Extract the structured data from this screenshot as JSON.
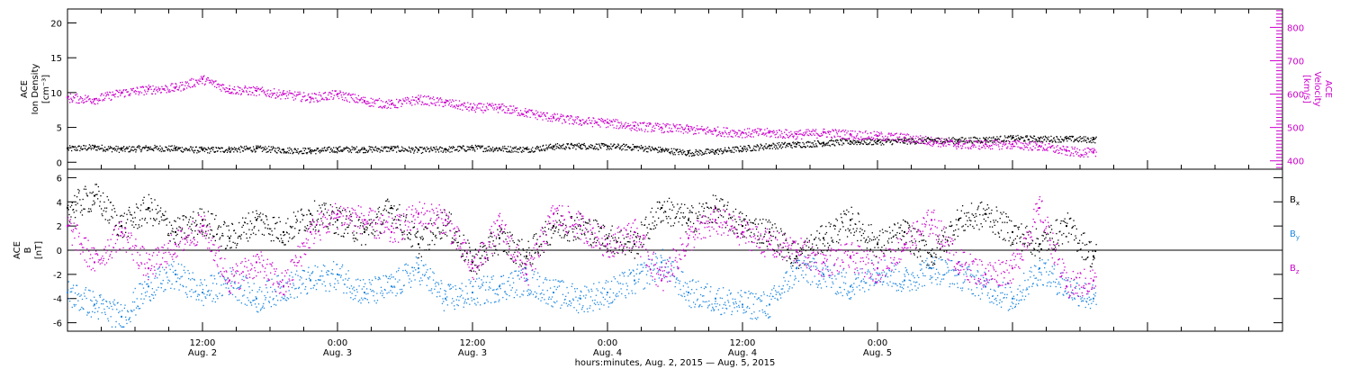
{
  "chart_data": [
    {
      "type": "scatter",
      "panel": "top",
      "left_axis": {
        "label_lines": [
          "ACE",
          "Ion Density",
          "[cm⁻³]"
        ],
        "range": [
          -1,
          22
        ],
        "ticks": [
          0,
          5,
          10,
          15,
          20
        ],
        "tick_labels": [
          "0",
          "5",
          "10",
          "15",
          "20"
        ],
        "color": "#000000"
      },
      "right_axis": {
        "label_lines": [
          "ACE",
          "Velocity",
          "[km/s]"
        ],
        "range": [
          375,
          855
        ],
        "ticks": [
          400,
          500,
          600,
          700,
          800
        ],
        "tick_labels": [
          "400",
          "500",
          "600",
          "700",
          "800"
        ],
        "color": "#cc00cc"
      },
      "series": [
        {
          "axis": "left",
          "color": "#000000",
          "points": [
            [
              0,
              2.0
            ],
            [
              0.1,
              2.2
            ],
            [
              0.2,
              1.9
            ],
            [
              0.3,
              2.1
            ],
            [
              0.4,
              2.0
            ],
            [
              0.5,
              1.8
            ],
            [
              0.6,
              1.9
            ],
            [
              0.7,
              2.0
            ],
            [
              0.8,
              1.8
            ],
            [
              0.9,
              1.7
            ],
            [
              1.0,
              1.9
            ],
            [
              1.1,
              1.9
            ],
            [
              1.2,
              2.0
            ],
            [
              1.3,
              1.8
            ],
            [
              1.4,
              1.9
            ],
            [
              1.5,
              2.1
            ],
            [
              1.6,
              2.0
            ],
            [
              1.7,
              1.9
            ],
            [
              1.8,
              2.3
            ],
            [
              1.9,
              2.4
            ],
            [
              2.0,
              2.3
            ],
            [
              2.1,
              2.2
            ],
            [
              2.2,
              1.8
            ],
            [
              2.3,
              1.4
            ],
            [
              2.4,
              1.6
            ],
            [
              2.5,
              2.0
            ],
            [
              2.6,
              2.4
            ],
            [
              2.7,
              2.6
            ],
            [
              2.8,
              2.8
            ],
            [
              2.9,
              3.0
            ],
            [
              3.0,
              3.0
            ],
            [
              3.1,
              3.1
            ],
            [
              3.2,
              3.2
            ],
            [
              3.3,
              3.2
            ],
            [
              3.4,
              3.3
            ],
            [
              3.5,
              3.5
            ],
            [
              3.6,
              3.4
            ],
            [
              3.7,
              3.4
            ],
            [
              3.8,
              3.3
            ]
          ]
        },
        {
          "axis": "right",
          "color": "#cc00cc",
          "points": [
            [
              0,
              590
            ],
            [
              0.1,
              585
            ],
            [
              0.2,
              605
            ],
            [
              0.3,
              615
            ],
            [
              0.4,
              620
            ],
            [
              0.5,
              645
            ],
            [
              0.6,
              615
            ],
            [
              0.7,
              610
            ],
            [
              0.8,
              600
            ],
            [
              0.9,
              590
            ],
            [
              1.0,
              600
            ],
            [
              1.1,
              580
            ],
            [
              1.2,
              570
            ],
            [
              1.3,
              585
            ],
            [
              1.4,
              575
            ],
            [
              1.5,
              560
            ],
            [
              1.6,
              560
            ],
            [
              1.7,
              545
            ],
            [
              1.8,
              530
            ],
            [
              1.9,
              520
            ],
            [
              2.0,
              515
            ],
            [
              2.1,
              505
            ],
            [
              2.2,
              500
            ],
            [
              2.3,
              495
            ],
            [
              2.4,
              490
            ],
            [
              2.5,
              485
            ],
            [
              2.6,
              485
            ],
            [
              2.7,
              480
            ],
            [
              2.8,
              485
            ],
            [
              2.9,
              480
            ],
            [
              3.0,
              475
            ],
            [
              3.1,
              470
            ],
            [
              3.2,
              460
            ],
            [
              3.3,
              450
            ],
            [
              3.4,
              450
            ],
            [
              3.5,
              450
            ],
            [
              3.6,
              445
            ],
            [
              3.7,
              430
            ],
            [
              3.8,
              425
            ]
          ]
        }
      ]
    },
    {
      "type": "scatter",
      "panel": "bottom",
      "y_axis": {
        "label_lines": [
          "ACE",
          "B",
          "[nT]"
        ],
        "range": [
          -6.7,
          6.7
        ],
        "ticks": [
          -6,
          -4,
          -2,
          0,
          2,
          4,
          6
        ],
        "tick_labels": [
          "-6",
          "-4",
          "-2",
          "0",
          "2",
          "4",
          "6"
        ],
        "zero_line": true
      },
      "series": [
        {
          "name": "Bx",
          "color": "#000000",
          "points": [
            [
              0,
              3.5
            ],
            [
              0.1,
              4.5
            ],
            [
              0.2,
              2.0
            ],
            [
              0.3,
              3.5
            ],
            [
              0.4,
              1.5
            ],
            [
              0.5,
              2.5
            ],
            [
              0.6,
              1.0
            ],
            [
              0.7,
              2.5
            ],
            [
              0.8,
              1.5
            ],
            [
              0.9,
              3.0
            ],
            [
              1.0,
              2.5
            ],
            [
              1.1,
              1.5
            ],
            [
              1.2,
              3.5
            ],
            [
              1.3,
              0.5
            ],
            [
              1.4,
              2.5
            ],
            [
              1.5,
              -1.0
            ],
            [
              1.6,
              1.0
            ],
            [
              1.7,
              -0.5
            ],
            [
              1.8,
              2.0
            ],
            [
              1.9,
              2.0
            ],
            [
              2.0,
              1.0
            ],
            [
              2.1,
              0.5
            ],
            [
              2.2,
              3.5
            ],
            [
              2.3,
              2.5
            ],
            [
              2.4,
              3.5
            ],
            [
              2.5,
              2.0
            ],
            [
              2.6,
              1.5
            ],
            [
              2.7,
              -0.5
            ],
            [
              2.8,
              1.0
            ],
            [
              2.9,
              2.5
            ],
            [
              3.0,
              0.5
            ],
            [
              3.1,
              1.5
            ],
            [
              3.2,
              -0.5
            ],
            [
              3.3,
              2.5
            ],
            [
              3.4,
              3.0
            ],
            [
              3.5,
              1.5
            ],
            [
              3.6,
              0.5
            ],
            [
              3.7,
              2.0
            ],
            [
              3.8,
              -0.5
            ]
          ]
        },
        {
          "name": "By",
          "color": "#1f88e0",
          "points": [
            [
              0,
              -3.5
            ],
            [
              0.1,
              -4.5
            ],
            [
              0.2,
              -5.5
            ],
            [
              0.3,
              -3.0
            ],
            [
              0.4,
              -2.0
            ],
            [
              0.5,
              -3.5
            ],
            [
              0.6,
              -2.5
            ],
            [
              0.7,
              -4.0
            ],
            [
              0.8,
              -3.0
            ],
            [
              0.9,
              -2.5
            ],
            [
              1.0,
              -2.0
            ],
            [
              1.1,
              -3.5
            ],
            [
              1.2,
              -3.0
            ],
            [
              1.3,
              -1.5
            ],
            [
              1.4,
              -4.0
            ],
            [
              1.5,
              -3.5
            ],
            [
              1.6,
              -3.0
            ],
            [
              1.7,
              -2.5
            ],
            [
              1.8,
              -3.5
            ],
            [
              1.9,
              -4.0
            ],
            [
              2.0,
              -3.5
            ],
            [
              2.1,
              -2.5
            ],
            [
              2.2,
              -1.0
            ],
            [
              2.3,
              -3.5
            ],
            [
              2.4,
              -4.0
            ],
            [
              2.5,
              -4.5
            ],
            [
              2.6,
              -4.5
            ],
            [
              2.7,
              -1.5
            ],
            [
              2.8,
              -2.0
            ],
            [
              2.9,
              -3.0
            ],
            [
              3.0,
              -1.5
            ],
            [
              3.1,
              -2.5
            ],
            [
              3.2,
              -1.5
            ],
            [
              3.3,
              -2.0
            ],
            [
              3.4,
              -3.0
            ],
            [
              3.5,
              -4.0
            ],
            [
              3.6,
              -1.5
            ],
            [
              3.7,
              -3.0
            ],
            [
              3.8,
              -4.0
            ]
          ]
        },
        {
          "name": "Bz",
          "color": "#cc00cc",
          "points": [
            [
              0,
              2.0
            ],
            [
              0.1,
              -1.0
            ],
            [
              0.2,
              1.5
            ],
            [
              0.3,
              -1.5
            ],
            [
              0.4,
              0.5
            ],
            [
              0.5,
              2.0
            ],
            [
              0.6,
              -2.5
            ],
            [
              0.7,
              -1.0
            ],
            [
              0.8,
              -3.0
            ],
            [
              0.9,
              1.5
            ],
            [
              1.0,
              3.0
            ],
            [
              1.1,
              2.5
            ],
            [
              1.2,
              1.5
            ],
            [
              1.3,
              3.0
            ],
            [
              1.4,
              2.5
            ],
            [
              1.5,
              -1.5
            ],
            [
              1.6,
              2.0
            ],
            [
              1.7,
              -2.0
            ],
            [
              1.8,
              3.0
            ],
            [
              1.9,
              2.0
            ],
            [
              2.0,
              0.5
            ],
            [
              2.1,
              1.5
            ],
            [
              2.2,
              -2.5
            ],
            [
              2.3,
              1.0
            ],
            [
              2.4,
              2.5
            ],
            [
              2.5,
              1.5
            ],
            [
              2.6,
              0.5
            ],
            [
              2.7,
              0.0
            ],
            [
              2.8,
              -1.0
            ],
            [
              2.9,
              -0.5
            ],
            [
              3.0,
              -1.5
            ],
            [
              3.1,
              0.5
            ],
            [
              3.2,
              2.5
            ],
            [
              3.3,
              -1.0
            ],
            [
              3.4,
              -2.0
            ],
            [
              3.5,
              -1.5
            ],
            [
              3.6,
              3.5
            ],
            [
              3.7,
              -3.0
            ],
            [
              3.8,
              -2.5
            ]
          ]
        }
      ],
      "legend": [
        {
          "text": "B",
          "sub": "x",
          "color": "#000000"
        },
        {
          "text": "B",
          "sub": "y",
          "color": "#1f88e0"
        },
        {
          "text": "B",
          "sub": "z",
          "color": "#cc00cc"
        }
      ]
    }
  ],
  "x_axis": {
    "range": [
      0,
      4.5
    ],
    "data_end": 3.81,
    "ticks": [
      {
        "value": 0.5,
        "time": "12:00",
        "date": "Aug. 2"
      },
      {
        "value": 1.0,
        "time": "0:00",
        "date": "Aug. 3"
      },
      {
        "value": 1.5,
        "time": "12:00",
        "date": "Aug. 3"
      },
      {
        "value": 2.0,
        "time": "0:00",
        "date": "Aug. 4"
      },
      {
        "value": 2.5,
        "time": "12:00",
        "date": "Aug. 4"
      },
      {
        "value": 3.0,
        "time": "0:00",
        "date": "Aug. 5"
      }
    ],
    "label": "hours:minutes, Aug.  2, 2015 — Aug.  5, 2015"
  }
}
